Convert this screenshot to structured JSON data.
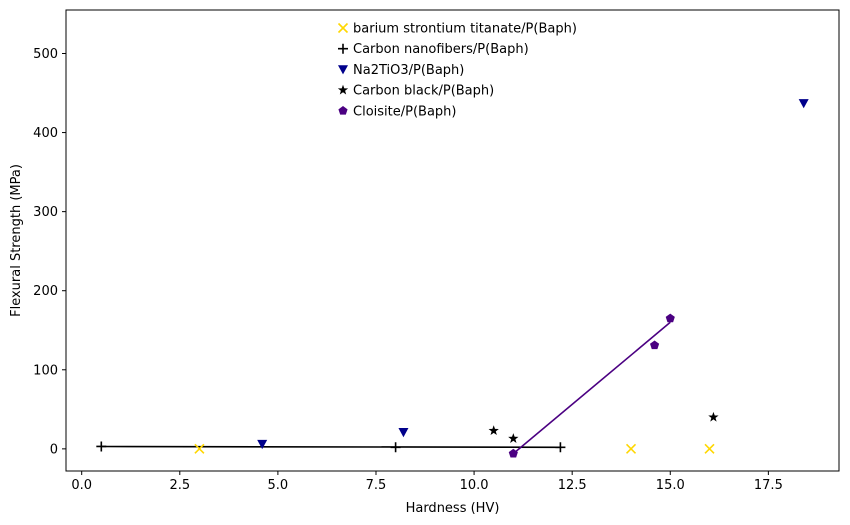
{
  "chart_data": {
    "type": "scatter",
    "title": "",
    "xlabel": "Hardness (HV)",
    "ylabel": "Flexural Strength (MPa)",
    "xlim": [
      -0.4,
      19.3
    ],
    "ylim": [
      -28,
      555
    ],
    "xticks": [
      0.0,
      2.5,
      5.0,
      7.5,
      10.0,
      12.5,
      15.0,
      17.5
    ],
    "xtick_labels": [
      "0.0",
      "2.5",
      "5.0",
      "7.5",
      "10.0",
      "12.5",
      "15.0",
      "17.5"
    ],
    "yticks": [
      0,
      100,
      200,
      300,
      400,
      500
    ],
    "ytick_labels": [
      "0",
      "100",
      "200",
      "300",
      "400",
      "500"
    ],
    "grid": false,
    "legend_position": "top-center",
    "series": [
      {
        "name": "barium strontium titanate/P(Baph)",
        "marker": "x",
        "color": "#FFD700",
        "points": [
          [
            3.0,
            0
          ],
          [
            14.0,
            0
          ],
          [
            16.0,
            0
          ]
        ]
      },
      {
        "name": "Carbon nanofibers/P(Baph)",
        "marker": "plus",
        "color": "#000000",
        "points": [
          [
            0.5,
            3
          ],
          [
            8.0,
            2
          ],
          [
            12.2,
            2
          ]
        ],
        "fit_line": {
          "x": [
            0.5,
            12.2
          ],
          "y": [
            3,
            2
          ],
          "color": "#000000"
        }
      },
      {
        "name": "Na2TiO3/P(Baph)",
        "marker": "triangle-down",
        "color": "#00008B",
        "points": [
          [
            4.6,
            6
          ],
          [
            8.2,
            21
          ],
          [
            18.4,
            437
          ]
        ]
      },
      {
        "name": "Carbon black/P(Baph)",
        "marker": "star",
        "color": "#000000",
        "points": [
          [
            10.5,
            23
          ],
          [
            11.0,
            13
          ],
          [
            16.1,
            40
          ]
        ]
      },
      {
        "name": "Cloisite/P(Baph)",
        "marker": "pentagon",
        "color": "#4B0082",
        "points": [
          [
            11.0,
            -6
          ],
          [
            14.6,
            131
          ],
          [
            15.0,
            165
          ]
        ],
        "fit_line": {
          "x": [
            11.0,
            15.0
          ],
          "y": [
            -6,
            160
          ],
          "color": "#4B0082"
        }
      }
    ]
  }
}
